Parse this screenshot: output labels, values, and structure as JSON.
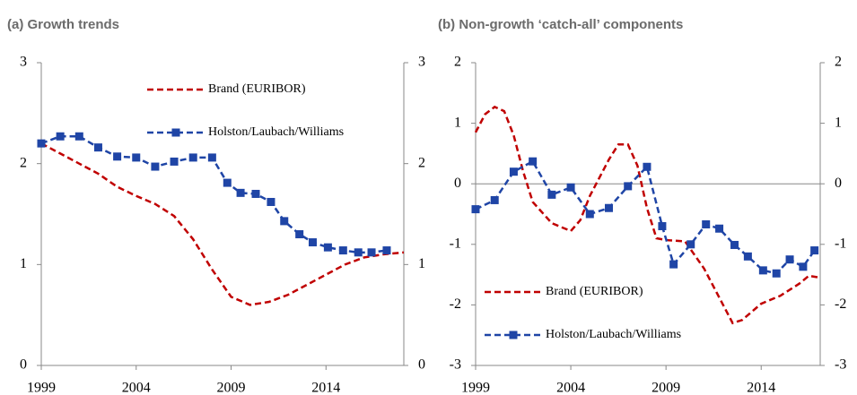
{
  "chart_data": [
    {
      "type": "line",
      "title": "(a) Growth trends",
      "xlim": [
        1999,
        2018.1
      ],
      "xticks": [
        1999,
        2004,
        2009,
        2014
      ],
      "ylim": [
        0,
        3
      ],
      "yticks": [
        0,
        1,
        2,
        3
      ],
      "right_axis_labels": true,
      "zero_line": false,
      "legend": "upper right",
      "series": [
        {
          "name": "Brand (EURIBOR)",
          "color": "#c00000",
          "style": "dashed",
          "markers": false,
          "x": [
            1999,
            2000,
            2001,
            2002,
            2003,
            2004,
            2005,
            2006,
            2007,
            2008,
            2009,
            2010,
            2011,
            2012,
            2013,
            2014,
            2015,
            2016,
            2017,
            2018.1
          ],
          "values": [
            2.2,
            2.1,
            2.0,
            1.9,
            1.77,
            1.68,
            1.6,
            1.48,
            1.25,
            0.95,
            0.68,
            0.6,
            0.63,
            0.7,
            0.8,
            0.9,
            1.0,
            1.07,
            1.1,
            1.12
          ]
        },
        {
          "name": "Holston/Laubach/Williams",
          "color": "#1f45a6",
          "style": "dashed",
          "markers": true,
          "x": [
            1999,
            2000,
            2001,
            2002,
            2003,
            2004,
            2005,
            2006,
            2007,
            2008,
            2008.8,
            2009.5,
            2010.3,
            2011.1,
            2011.8,
            2012.6,
            2013.3,
            2014.1,
            2014.9,
            2015.7,
            2016.4,
            2017.2
          ],
          "values": [
            2.2,
            2.27,
            2.27,
            2.16,
            2.07,
            2.06,
            1.97,
            2.02,
            2.06,
            2.06,
            1.81,
            1.71,
            1.7,
            1.62,
            1.43,
            1.3,
            1.22,
            1.17,
            1.14,
            1.12,
            1.12,
            1.14
          ]
        }
      ]
    },
    {
      "type": "line",
      "title": "(b) Non-growth ‘catch-all’ components",
      "xlim": [
        1999,
        2017.1
      ],
      "xticks": [
        1999,
        2004,
        2009,
        2014
      ],
      "ylim": [
        -3,
        2
      ],
      "yticks": [
        -3,
        -2,
        -1,
        0,
        1,
        2
      ],
      "right_axis_labels": true,
      "zero_line": true,
      "legend": "lower left",
      "series": [
        {
          "name": "Brand (EURIBOR)",
          "color": "#c00000",
          "style": "dashed",
          "markers": false,
          "x": [
            1999,
            1999.5,
            2000,
            2000.5,
            2001,
            2001.5,
            2002,
            2003,
            2004,
            2004.5,
            2005,
            2006,
            2006.5,
            2007,
            2007.5,
            2008,
            2008.5,
            2009,
            2010,
            2011,
            2012,
            2012.5,
            2013,
            2014,
            2015,
            2016,
            2016.5,
            2017.1
          ],
          "values": [
            0.85,
            1.15,
            1.27,
            1.2,
            0.8,
            0.2,
            -0.3,
            -0.65,
            -0.78,
            -0.6,
            -0.2,
            0.4,
            0.65,
            0.65,
            0.3,
            -0.4,
            -0.9,
            -0.93,
            -0.95,
            -1.4,
            -2.0,
            -2.3,
            -2.25,
            -1.98,
            -1.85,
            -1.65,
            -1.52,
            -1.55
          ]
        },
        {
          "name": "Holston/Laubach/Williams",
          "color": "#1f45a6",
          "style": "dashed",
          "markers": true,
          "x": [
            1999,
            2000,
            2001,
            2002,
            2003,
            2004,
            2005,
            2006,
            2007,
            2008,
            2008.8,
            2009.4,
            2010.3,
            2011.1,
            2011.8,
            2012.6,
            2013.3,
            2014.1,
            2014.8,
            2015.5,
            2016.2,
            2016.8
          ],
          "values": [
            -0.42,
            -0.27,
            0.2,
            0.37,
            -0.18,
            -0.06,
            -0.5,
            -0.4,
            -0.04,
            0.28,
            -0.7,
            -1.33,
            -1.0,
            -0.67,
            -0.74,
            -1.01,
            -1.2,
            -1.43,
            -1.48,
            -1.25,
            -1.37,
            -1.1
          ]
        }
      ]
    }
  ]
}
